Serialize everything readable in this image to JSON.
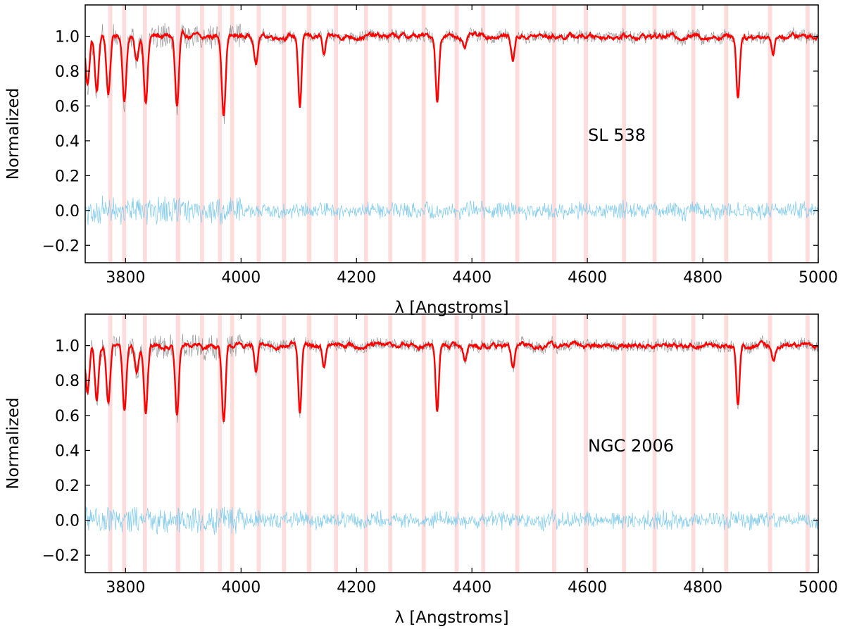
{
  "chart_data": [
    {
      "type": "line",
      "annotation": "SL 538",
      "xlabel": "λ [Angstroms]",
      "ylabel": "Normalized",
      "xlim": [
        3730,
        5000
      ],
      "ylim": [
        -0.3,
        1.18
      ],
      "xticks": [
        3800,
        4000,
        4200,
        4400,
        4600,
        4800,
        5000
      ],
      "yticks": [
        -0.2,
        0.0,
        0.2,
        0.4,
        0.6,
        0.8,
        1.0
      ],
      "ytick_labels": [
        "−0.2",
        "0.0",
        "0.2",
        "0.4",
        "0.6",
        "0.8",
        "1.0"
      ],
      "grid": false,
      "colors": {
        "model": "#ff0000",
        "observed": "#7f7f7f",
        "residual": "#87ceeb",
        "masked_band": "#ffc0c0"
      },
      "masked_bands": [
        [
          3770,
          3777
        ],
        [
          3794,
          3801
        ],
        [
          3830,
          3837
        ],
        [
          3887,
          3895
        ],
        [
          3929,
          3936
        ],
        [
          3960,
          3967
        ],
        [
          3981,
          3988
        ],
        [
          4027,
          4034
        ],
        [
          4071,
          4078
        ],
        [
          4114,
          4122
        ],
        [
          4161,
          4168
        ],
        [
          4213,
          4220
        ],
        [
          4255,
          4262
        ],
        [
          4313,
          4320
        ],
        [
          4370,
          4377
        ],
        [
          4416,
          4423
        ],
        [
          4475,
          4482
        ],
        [
          4539,
          4546
        ],
        [
          4594,
          4601
        ],
        [
          4660,
          4667
        ],
        [
          4713,
          4720
        ],
        [
          4780,
          4787
        ],
        [
          4837,
          4844
        ],
        [
          4913,
          4920
        ],
        [
          4978,
          4985
        ]
      ],
      "continuum_level": 1.0,
      "absorption_lines": [
        {
          "x": 3734,
          "min": 0.72
        },
        {
          "x": 3750,
          "min": 0.68
        },
        {
          "x": 3770,
          "min": 0.67
        },
        {
          "x": 3798,
          "min": 0.63
        },
        {
          "x": 3819,
          "min": 0.85
        },
        {
          "x": 3835,
          "min": 0.62
        },
        {
          "x": 3889,
          "min": 0.59
        },
        {
          "x": 3934,
          "min": 0.98
        },
        {
          "x": 3970,
          "min": 0.55
        },
        {
          "x": 4026,
          "min": 0.84
        },
        {
          "x": 4102,
          "min": 0.6
        },
        {
          "x": 4144,
          "min": 0.88
        },
        {
          "x": 4340,
          "min": 0.62
        },
        {
          "x": 4388,
          "min": 0.92
        },
        {
          "x": 4471,
          "min": 0.86
        },
        {
          "x": 4861,
          "min": 0.65
        },
        {
          "x": 4922,
          "min": 0.9
        }
      ],
      "series": [
        {
          "role": "model",
          "values_note": ""
        },
        {
          "role": "observed"
        },
        {
          "role": "residual"
        }
      ],
      "residual_level": 0.0
    },
    {
      "type": "line",
      "annotation": "NGC 2006",
      "xlabel": "λ [Angstroms]",
      "ylabel": "Normalized",
      "xlim": [
        3730,
        5000
      ],
      "ylim": [
        -0.3,
        1.18
      ],
      "xticks": [
        3800,
        4000,
        4200,
        4400,
        4600,
        4800,
        5000
      ],
      "yticks": [
        -0.2,
        0.0,
        0.2,
        0.4,
        0.6,
        0.8,
        1.0
      ],
      "ytick_labels": [
        "−0.2",
        "0.0",
        "0.2",
        "0.4",
        "0.6",
        "0.8",
        "1.0"
      ],
      "grid": false,
      "colors": {
        "model": "#ff0000",
        "observed": "#7f7f7f",
        "residual": "#87ceeb",
        "masked_band": "#ffc0c0"
      },
      "masked_bands": [
        [
          3770,
          3777
        ],
        [
          3794,
          3801
        ],
        [
          3830,
          3837
        ],
        [
          3887,
          3895
        ],
        [
          3929,
          3936
        ],
        [
          3960,
          3967
        ],
        [
          3981,
          3988
        ],
        [
          4027,
          4034
        ],
        [
          4071,
          4078
        ],
        [
          4114,
          4122
        ],
        [
          4161,
          4168
        ],
        [
          4213,
          4220
        ],
        [
          4255,
          4262
        ],
        [
          4313,
          4320
        ],
        [
          4370,
          4377
        ],
        [
          4416,
          4423
        ],
        [
          4475,
          4482
        ],
        [
          4539,
          4546
        ],
        [
          4594,
          4601
        ],
        [
          4660,
          4667
        ],
        [
          4713,
          4720
        ],
        [
          4780,
          4787
        ],
        [
          4837,
          4844
        ],
        [
          4913,
          4920
        ],
        [
          4978,
          4985
        ]
      ],
      "continuum_level": 1.0,
      "absorption_lines": [
        {
          "x": 3734,
          "min": 0.72
        },
        {
          "x": 3750,
          "min": 0.68
        },
        {
          "x": 3770,
          "min": 0.67
        },
        {
          "x": 3798,
          "min": 0.63
        },
        {
          "x": 3819,
          "min": 0.85
        },
        {
          "x": 3835,
          "min": 0.62
        },
        {
          "x": 3889,
          "min": 0.59
        },
        {
          "x": 3934,
          "min": 0.98
        },
        {
          "x": 3970,
          "min": 0.55
        },
        {
          "x": 4026,
          "min": 0.84
        },
        {
          "x": 4102,
          "min": 0.6
        },
        {
          "x": 4144,
          "min": 0.88
        },
        {
          "x": 4340,
          "min": 0.62
        },
        {
          "x": 4388,
          "min": 0.92
        },
        {
          "x": 4471,
          "min": 0.86
        },
        {
          "x": 4861,
          "min": 0.65
        },
        {
          "x": 4922,
          "min": 0.9
        }
      ],
      "series": [
        {
          "role": "model"
        },
        {
          "role": "observed"
        },
        {
          "role": "residual"
        }
      ],
      "residual_level": 0.0
    }
  ]
}
